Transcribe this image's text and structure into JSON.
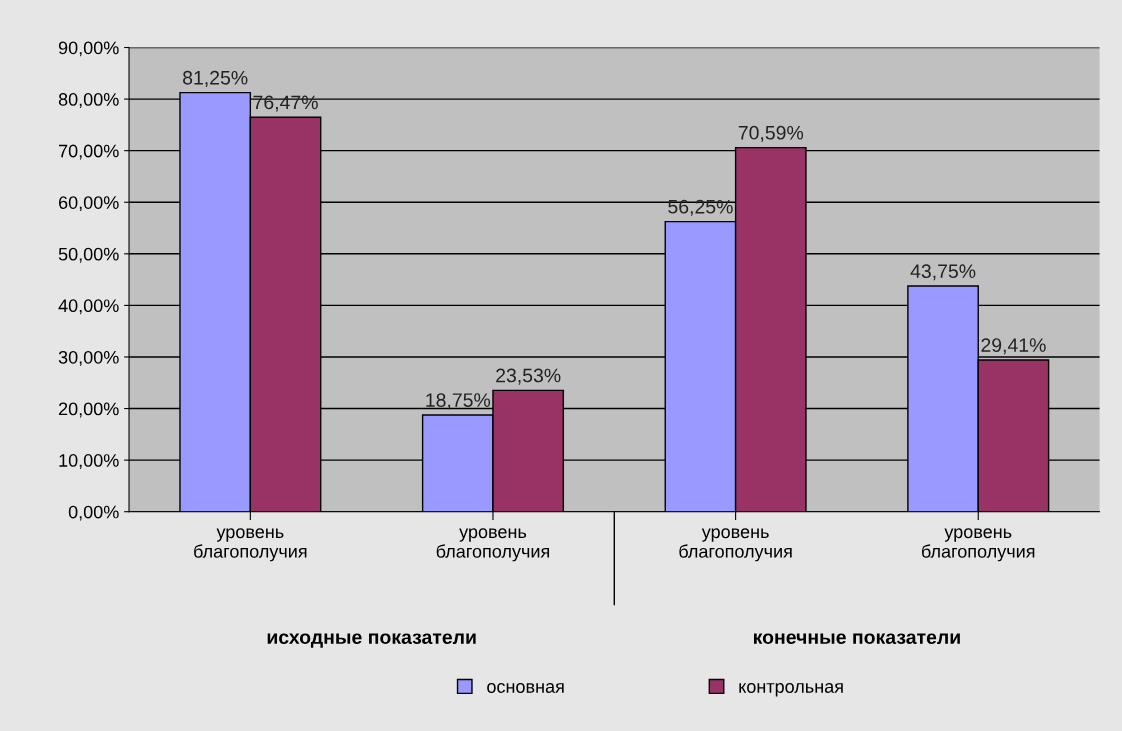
{
  "chart_data": {
    "type": "bar",
    "categories": [
      "уровень\nблагополучия",
      "уровень\nблагополучия",
      "уровень\nблагополучия",
      "уровень\nблагополучия"
    ],
    "series": [
      {
        "name": "основная",
        "color": "#9999ff",
        "values": [
          81.25,
          18.75,
          56.25,
          43.75
        ],
        "value_labels": [
          "81,25%",
          "18,75%",
          "56,25%",
          "43,75%"
        ]
      },
      {
        "name": "контрольная",
        "color": "#993366",
        "values": [
          76.47,
          23.53,
          70.59,
          29.41
        ],
        "value_labels": [
          "76,47%",
          "23,53%",
          "70,59%",
          "29,41%"
        ]
      }
    ],
    "annotations": [
      "исходные показатели",
      "конечные показатели"
    ],
    "ylim": [
      0,
      90
    ],
    "yticks": [
      {
        "value": 0,
        "label": "0,00%"
      },
      {
        "value": 10,
        "label": "10,00%"
      },
      {
        "value": 20,
        "label": "20,00%"
      },
      {
        "value": 30,
        "label": "30,00%"
      },
      {
        "value": 40,
        "label": "40,00%"
      },
      {
        "value": 50,
        "label": "50,00%"
      },
      {
        "value": 60,
        "label": "60,00%"
      },
      {
        "value": 70,
        "label": "70,00%"
      },
      {
        "value": 80,
        "label": "80,00%"
      },
      {
        "value": 90,
        "label": "90,00%"
      }
    ],
    "grid": "y",
    "legend": "bottom"
  }
}
